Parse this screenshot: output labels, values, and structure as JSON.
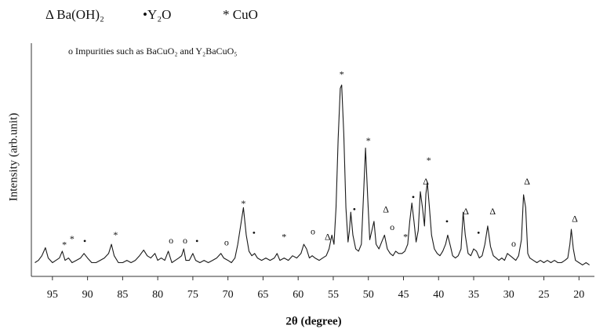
{
  "chart_data": {
    "type": "line",
    "legend": [
      "Δ Ba(OH)₂",
      "•Y₂O",
      "* CuO"
    ],
    "note": "o Impurities such as BaCuO₂ and Y₂BaCuO₅",
    "xlabel": "2θ (degree)",
    "ylabel": "Intensity (arb.unit)",
    "xlim": [
      98,
      17.8
    ],
    "ylim": [
      0,
      100
    ],
    "xticks": [
      95,
      90,
      85,
      80,
      75,
      70,
      65,
      60,
      55,
      50,
      45,
      40,
      35,
      30,
      25,
      20
    ],
    "color": "#1a1a1a",
    "x": [
      97.5,
      97,
      96.5,
      96,
      95.6,
      95,
      94.5,
      94,
      93.6,
      93.2,
      92.7,
      92.2,
      91.6,
      91,
      90.5,
      90,
      89.4,
      88.8,
      88.2,
      87.6,
      87,
      86.6,
      86.2,
      85.6,
      85,
      84.4,
      83.8,
      83.2,
      82.6,
      82,
      81.5,
      81,
      80.4,
      80,
      79.5,
      79,
      78.5,
      78,
      77.5,
      77,
      76.6,
      76.3,
      76,
      75.5,
      75,
      74.6,
      74,
      73.4,
      72.8,
      72.2,
      71.6,
      71,
      70.6,
      70,
      69.5,
      69,
      68.6,
      68.2,
      67.8,
      67.4,
      67,
      66.6,
      66.2,
      65.8,
      65.2,
      64.6,
      64,
      63.4,
      63,
      62.6,
      62,
      61.4,
      60.8,
      60.2,
      59.6,
      59.2,
      58.8,
      58.4,
      58,
      57.6,
      57,
      56.5,
      56,
      55.6,
      55.2,
      54.9,
      54.6,
      54.3,
      54,
      53.8,
      53.5,
      53.2,
      52.9,
      52.7,
      52.5,
      52.2,
      51.8,
      51.4,
      51,
      50.7,
      50.4,
      50.1,
      49.8,
      49.5,
      49.2,
      48.9,
      48.5,
      48.1,
      47.7,
      47.3,
      46.9,
      46.5,
      46.1,
      45.7,
      45.2,
      44.8,
      44.4,
      44.1,
      43.8,
      43.5,
      43.2,
      42.9,
      42.6,
      42.3,
      42,
      41.8,
      41.6,
      41.3,
      41,
      40.6,
      40.2,
      39.8,
      39.4,
      39,
      38.7,
      38.3,
      38,
      37.6,
      37.2,
      36.8,
      36.5,
      36.2,
      35.8,
      35.4,
      35,
      34.6,
      34.2,
      33.8,
      33.4,
      33,
      32.6,
      32.2,
      31.8,
      31.4,
      31,
      30.6,
      30.2,
      29.8,
      29.4,
      29,
      28.6,
      28.2,
      27.9,
      27.6,
      27.3,
      27,
      26.5,
      26,
      25.5,
      25,
      24.5,
      24,
      23.5,
      23,
      22.5,
      22,
      21.6,
      21.3,
      21.1,
      20.8,
      20.5,
      20,
      19.5,
      19,
      18.5
    ],
    "values": [
      6,
      7,
      9,
      12.5,
      8,
      6,
      7,
      8,
      11,
      7,
      8,
      6,
      7,
      8,
      10,
      8,
      6,
      6,
      7,
      8,
      10,
      14,
      9,
      6,
      6,
      7,
      6,
      7,
      9,
      11.5,
      9,
      8,
      10,
      7,
      8,
      7,
      11,
      6,
      7,
      8,
      9,
      12,
      7,
      7,
      10,
      7,
      6,
      7,
      6,
      7,
      8,
      10,
      8,
      7,
      6,
      8,
      14,
      22,
      30,
      18,
      11,
      9,
      10,
      8,
      7,
      8,
      7,
      8,
      10,
      7,
      8,
      7,
      9,
      8,
      10,
      14,
      12,
      8,
      9,
      8,
      7,
      8,
      9,
      12,
      18,
      14,
      30,
      60,
      82,
      83.5,
      62,
      30,
      15,
      20,
      28,
      18,
      12,
      11,
      14,
      35,
      56,
      35,
      16,
      20,
      24,
      14,
      12,
      15,
      18,
      12,
      10,
      9,
      11,
      10,
      10,
      11,
      14,
      24,
      32,
      24,
      15,
      20,
      37,
      30,
      22,
      36,
      41,
      30,
      18,
      12,
      10,
      9,
      11,
      14,
      18,
      13,
      9,
      8,
      9,
      12,
      28,
      18,
      10,
      9,
      12,
      11,
      8,
      9,
      14,
      22,
      13,
      9,
      8,
      7,
      8,
      7,
      10,
      9,
      8,
      7,
      9,
      16,
      35.6,
      30,
      10,
      8,
      7,
      6,
      7,
      6,
      7,
      6,
      7,
      6,
      6,
      7,
      8,
      14,
      20.5,
      12,
      7,
      6,
      5,
      6,
      5
    ],
    "annotations": [
      {
        "text": "*",
        "x": 93.3,
        "y": 13.4
      },
      {
        "text": "*",
        "x": 92.2,
        "y": 16
      },
      {
        "text": "•",
        "x": 90.4,
        "y": 15
      },
      {
        "text": "*",
        "x": 86,
        "y": 17.8
      },
      {
        "text": "o",
        "x": 78.1,
        "y": 15.4
      },
      {
        "text": "o",
        "x": 76.1,
        "y": 15.4
      },
      {
        "text": "•",
        "x": 74.4,
        "y": 15
      },
      {
        "text": "o",
        "x": 70.2,
        "y": 14.4
      },
      {
        "text": "*",
        "x": 67.8,
        "y": 31.5
      },
      {
        "text": "•",
        "x": 66.3,
        "y": 18.5
      },
      {
        "text": "*",
        "x": 62,
        "y": 16.8
      },
      {
        "text": "o",
        "x": 57.9,
        "y": 19.2
      },
      {
        "text": "Δ",
        "x": 55.8,
        "y": 16.8
      },
      {
        "text": "*",
        "x": 53.8,
        "y": 87.7
      },
      {
        "text": "•",
        "x": 52,
        "y": 28.8
      },
      {
        "text": "*",
        "x": 50,
        "y": 58.9
      },
      {
        "text": "Δ",
        "x": 47.5,
        "y": 28.8
      },
      {
        "text": "o",
        "x": 46.6,
        "y": 21.2
      },
      {
        "text": "*",
        "x": 44.7,
        "y": 16.8
      },
      {
        "text": "•",
        "x": 43.6,
        "y": 34.2
      },
      {
        "text": "*",
        "x": 41.4,
        "y": 50.3
      },
      {
        "text": "Δ",
        "x": 41.8,
        "y": 41
      },
      {
        "text": "•",
        "x": 38.8,
        "y": 23.6
      },
      {
        "text": "Δ",
        "x": 36.1,
        "y": 28
      },
      {
        "text": "•",
        "x": 34.3,
        "y": 18.5
      },
      {
        "text": "Δ",
        "x": 32.3,
        "y": 28
      },
      {
        "text": "o",
        "x": 29.3,
        "y": 14
      },
      {
        "text": "Δ",
        "x": 27.4,
        "y": 41
      },
      {
        "text": "Δ",
        "x": 20.6,
        "y": 24.7
      }
    ]
  }
}
